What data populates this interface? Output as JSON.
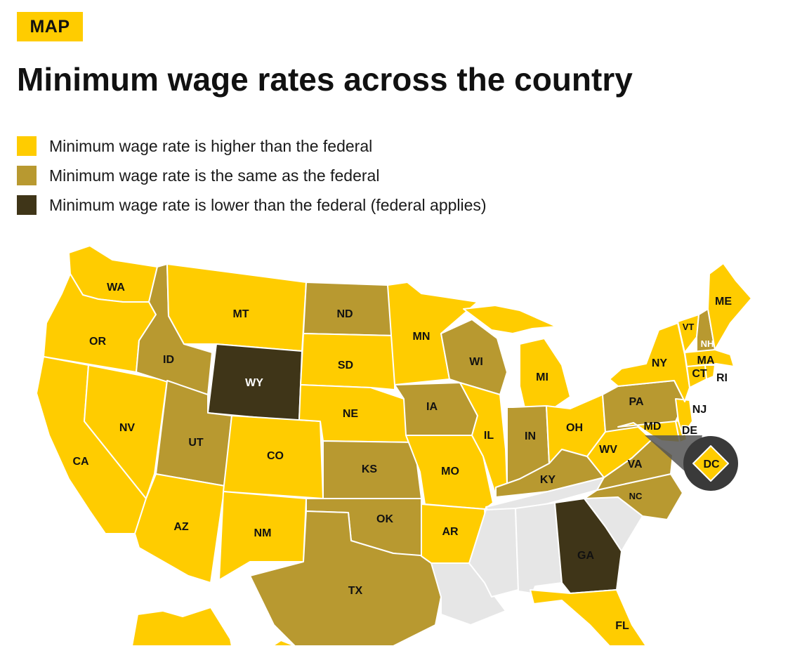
{
  "badge": "MAP",
  "title": "Minimum wage rates across the country",
  "colors": {
    "higher": "#ffcc00",
    "same": "#b89930",
    "lower": "#3f3518",
    "no_law": "#e6e6e6"
  },
  "legend": [
    {
      "label": "Minimum wage rate is higher than the federal",
      "color": "#ffcc00"
    },
    {
      "label": "Minimum wage rate is the same as the federal",
      "color": "#b89930"
    },
    {
      "label": "Minimum wage rate is lower than the federal (federal applies)",
      "color": "#3f3518"
    }
  ],
  "states": {
    "WA": {
      "label": "WA",
      "status": "higher"
    },
    "OR": {
      "label": "OR",
      "status": "higher"
    },
    "CA": {
      "label": "CA",
      "status": "higher"
    },
    "NV": {
      "label": "NV",
      "status": "higher"
    },
    "ID": {
      "label": "ID",
      "status": "same"
    },
    "MT": {
      "label": "MT",
      "status": "higher"
    },
    "WY": {
      "label": "WY",
      "status": "lower"
    },
    "UT": {
      "label": "UT",
      "status": "same"
    },
    "AZ": {
      "label": "AZ",
      "status": "higher"
    },
    "CO": {
      "label": "CO",
      "status": "higher"
    },
    "NM": {
      "label": "NM",
      "status": "higher"
    },
    "ND": {
      "label": "ND",
      "status": "same"
    },
    "SD": {
      "label": "SD",
      "status": "higher"
    },
    "NE": {
      "label": "NE",
      "status": "higher"
    },
    "KS": {
      "label": "KS",
      "status": "same"
    },
    "OK": {
      "label": "OK",
      "status": "same"
    },
    "TX": {
      "label": "TX",
      "status": "same"
    },
    "MN": {
      "label": "MN",
      "status": "higher"
    },
    "IA": {
      "label": "IA",
      "status": "same"
    },
    "MO": {
      "label": "MO",
      "status": "higher"
    },
    "AR": {
      "label": "AR",
      "status": "higher"
    },
    "LA": {
      "status": "no_law"
    },
    "WI": {
      "label": "WI",
      "status": "same"
    },
    "IL": {
      "label": "IL",
      "status": "higher"
    },
    "MI": {
      "label": "MI",
      "status": "higher"
    },
    "IN": {
      "label": "IN",
      "status": "same"
    },
    "OH": {
      "label": "OH",
      "status": "higher"
    },
    "KY": {
      "label": "KY",
      "status": "same"
    },
    "TN": {
      "status": "no_law"
    },
    "MS": {
      "status": "no_law"
    },
    "AL": {
      "status": "no_law"
    },
    "GA": {
      "label": "GA",
      "status": "lower"
    },
    "FL": {
      "label": "FL",
      "status": "higher"
    },
    "SC": {
      "status": "no_law"
    },
    "NC": {
      "label": "NC",
      "status": "same"
    },
    "VA": {
      "label": "VA",
      "status": "same"
    },
    "WV": {
      "label": "WV",
      "status": "higher"
    },
    "PA": {
      "label": "PA",
      "status": "same"
    },
    "NY": {
      "label": "NY",
      "status": "higher"
    },
    "VT": {
      "label": "VT",
      "status": "higher"
    },
    "NH": {
      "label": "NH",
      "status": "same"
    },
    "ME": {
      "label": "ME",
      "status": "higher"
    },
    "MA": {
      "label": "MA",
      "status": "higher"
    },
    "CT": {
      "label": "CT",
      "status": "higher"
    },
    "RI": {
      "label": "RI",
      "status": "higher"
    },
    "NJ": {
      "label": "NJ",
      "status": "higher"
    },
    "DE": {
      "label": "DE",
      "status": "higher"
    },
    "MD": {
      "label": "MD",
      "status": "higher"
    },
    "DC": {
      "label": "DC",
      "status": "higher"
    },
    "AK": {
      "status": "higher"
    },
    "HI": {
      "status": "higher"
    }
  }
}
